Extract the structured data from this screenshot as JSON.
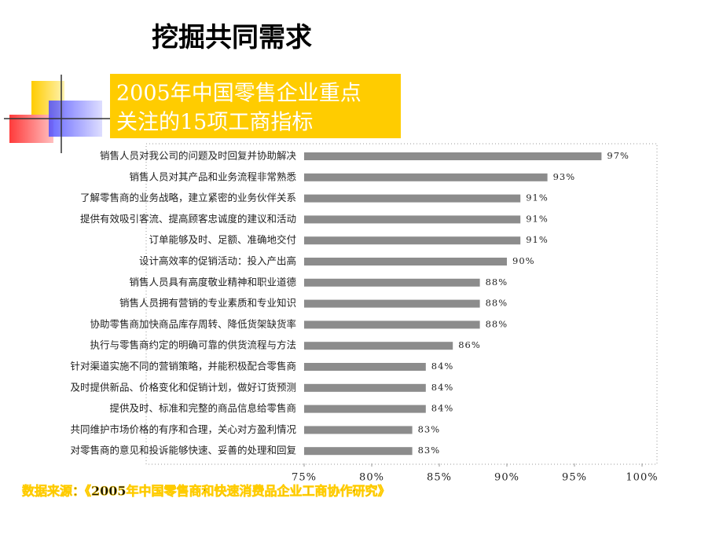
{
  "chart_data": {
    "type": "hbar",
    "title": "挖掘共同需求",
    "subtitle": [
      "2005年中国零售企业重点",
      "关注的15项工商指标"
    ],
    "source": "数据来源：《2005年中国零售商和快速消费品企业工商协作研究》",
    "categories": [
      "销售人员对我公司的问题及时回复并协助解决",
      "销售人员对其产品和业务流程非常熟悉",
      "了解零售商的业务战略，建立紧密的业务伙伴关系",
      "提供有效吸引客流、提高顾客忠诚度的建议和活动",
      "订单能够及时、足额、准确地交付",
      "设计高效率的促销活动：投入产出高",
      "销售人员具有高度敬业精神和职业道德",
      "销售人员拥有营销的专业素质和专业知识",
      "协助零售商加快商品库存周转、降低货架缺货率",
      "执行与零售商约定的明确可靠的供货流程与方法",
      "针对渠道实施不同的营销策略，并能积极配合零售商",
      "及时提供新品、价格变化和促销计划，做好订货预测",
      "提供及时、标准和完整的商品信息给零售商",
      "共同维护市场价格的有序和合理，关心对方盈利情况",
      "对零售商的意见和投诉能够快速、妥善的处理和回复"
    ],
    "values": [
      97,
      93,
      91,
      91,
      91,
      90,
      88,
      88,
      88,
      86,
      84,
      84,
      84,
      83,
      83
    ],
    "value_labels": [
      "97%",
      "93%",
      "91%",
      "91%",
      "91%",
      "90%",
      "88%",
      "88%",
      "88%",
      "86%",
      "84%",
      "84%",
      "84%",
      "83%",
      "83%"
    ],
    "color": "#8c8c8c",
    "xlim": [
      75,
      100
    ],
    "xticks": [
      {
        "value": 75,
        "label": "75%"
      },
      {
        "value": 80,
        "label": "80%"
      },
      {
        "value": 85,
        "label": "85%"
      },
      {
        "value": 90,
        "label": "90%"
      },
      {
        "value": 95,
        "label": "95%"
      },
      {
        "value": 100,
        "label": "100%"
      }
    ]
  }
}
